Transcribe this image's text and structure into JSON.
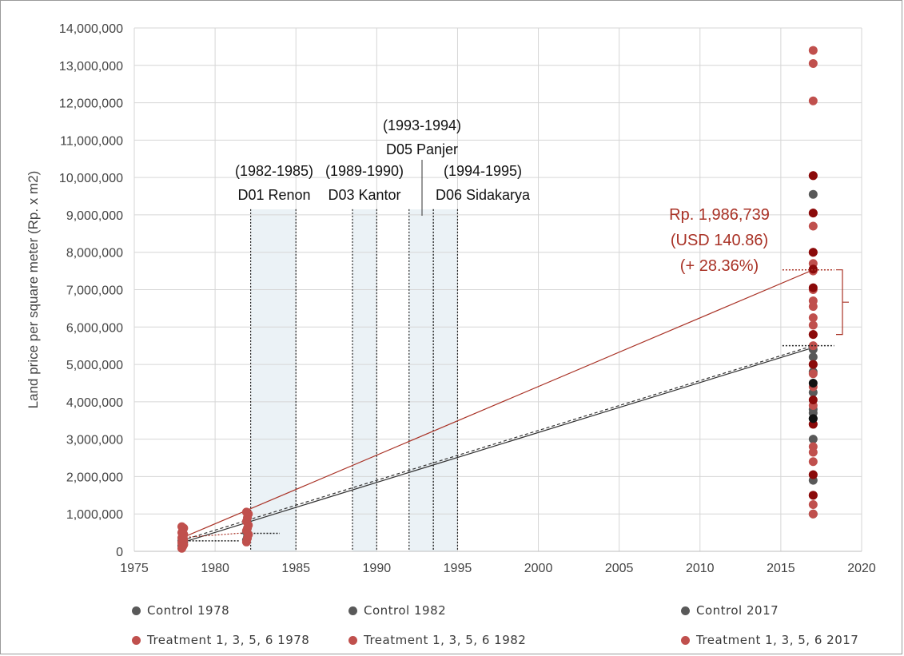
{
  "chart_data": {
    "type": "scatter",
    "ylabel": "Land price per square meter (Rp. x m2)",
    "xlabel": "",
    "xlim": [
      1975,
      2020
    ],
    "ylim": [
      0,
      14000000
    ],
    "x_ticks": [
      1975,
      1980,
      1985,
      1990,
      1995,
      2000,
      2005,
      2010,
      2015,
      2020
    ],
    "x_tick_labels": [
      "1975",
      "1980",
      "1985",
      "1990",
      "1995",
      "2000",
      "2005",
      "2010",
      "2015",
      "2020"
    ],
    "y_ticks": [
      0,
      1000000,
      2000000,
      3000000,
      4000000,
      5000000,
      6000000,
      7000000,
      8000000,
      9000000,
      10000000,
      11000000,
      12000000,
      13000000,
      14000000
    ],
    "y_tick_labels": [
      "0",
      "1,000,000",
      "2,000,000",
      "3,000,000",
      "4,000,000",
      "5,000,000",
      "6,000,000",
      "7,000,000",
      "8,000,000",
      "9,000,000",
      "10,000,000",
      "11,000,000",
      "12,000,000",
      "13,000,000",
      "14,000,000"
    ],
    "grid": true,
    "periods": [
      {
        "start": 1982.2,
        "end": 1985,
        "label_top": "(1982-1985)",
        "label_bottom": "D01 Renon",
        "top": 9150000
      },
      {
        "start": 1988.5,
        "end": 1990,
        "label_top": "(1989-1990)",
        "label_bottom": "D03 Kantor",
        "top": 9150000
      },
      {
        "start": 1992,
        "end": 1993.5,
        "label_top": "(1993-1994)",
        "label_bottom": "D05 Panjer",
        "top": 9150000
      },
      {
        "start": 1993.5,
        "end": 1995,
        "label_top": "(1994-1995)",
        "label_bottom": "D06 Sidakarya",
        "top": 9150000
      }
    ],
    "series": [
      {
        "name": "Control 1978",
        "color": "#595959",
        "x": 1978,
        "values": [
          150000,
          200000,
          250000,
          280000,
          320000
        ]
      },
      {
        "name": "Control 1982",
        "color": "#595959",
        "x": 1982,
        "values": [
          300000,
          380000,
          450000,
          520000
        ]
      },
      {
        "name": "Control 2017",
        "color": "#595959",
        "x": 2017,
        "values": [
          1000000,
          1900000,
          3000000,
          3550000,
          3700000,
          3800000,
          4250000,
          4800000,
          5200000,
          5400000,
          9550000
        ]
      },
      {
        "name": "Treatment 1, 3, 5, 6 1978",
        "color": "#c0504d",
        "x": 1978,
        "values": [
          80000,
          130000,
          180000,
          230000,
          270000,
          310000,
          360000,
          400000,
          450000,
          500000,
          560000,
          620000,
          660000
        ]
      },
      {
        "name": "Treatment 1, 3, 5, 6 1982",
        "color": "#c0504d",
        "x": 1982,
        "values": [
          250000,
          350000,
          450000,
          550000,
          620000,
          700000,
          800000,
          900000,
          1000000,
          1050000
        ]
      },
      {
        "name": "Treatment 1, 3, 5, 6 2017",
        "color": "#c0504d",
        "x": 2017,
        "values": [
          1000000,
          1250000,
          1500000,
          2050000,
          2400000,
          2650000,
          2800000,
          3400000,
          3900000,
          4400000,
          4750000,
          5000000,
          5500000,
          5800000,
          6050000,
          6250000,
          6550000,
          6700000,
          7000000,
          7500000,
          7700000,
          8000000,
          8700000,
          9050000,
          10050000,
          12050000,
          13050000,
          13400000
        ]
      }
    ],
    "dark_red_2017": [
      1500000,
      2050000,
      3400000,
      4050000,
      5000000,
      5800000,
      7050000,
      7550000,
      8000000,
      9050000,
      10050000
    ],
    "black_2017": [
      3550000,
      4500000
    ],
    "trend_lines": [
      {
        "kind": "treatment",
        "color": "#a93226",
        "from": [
          1978,
          370000
        ],
        "to": [
          2017,
          7530000
        ]
      },
      {
        "kind": "control",
        "color": "#333333",
        "from": [
          1978,
          240000
        ],
        "to": [
          2017,
          5450000
        ]
      },
      {
        "kind": "control-dashed",
        "color": "#333333",
        "from": [
          1978,
          300000
        ],
        "to": [
          2017,
          5500000
        ]
      }
    ],
    "annotation": {
      "lines": [
        "Rp. 1,986,739",
        "(USD 140.86)",
        "(+ 28.36%)"
      ],
      "color": "#a93226"
    },
    "legend": [
      {
        "label": "Control 1978",
        "color": "#595959"
      },
      {
        "label": "Control 1982",
        "color": "#595959"
      },
      {
        "label": "Control 2017",
        "color": "#595959"
      },
      {
        "label": "Treatment 1, 3, 5, 6 1978",
        "color": "#c0504d"
      },
      {
        "label": "Treatment 1, 3, 5, 6 1982",
        "color": "#c0504d"
      },
      {
        "label": "Treatment 1, 3, 5, 6 2017",
        "color": "#c0504d"
      }
    ]
  }
}
